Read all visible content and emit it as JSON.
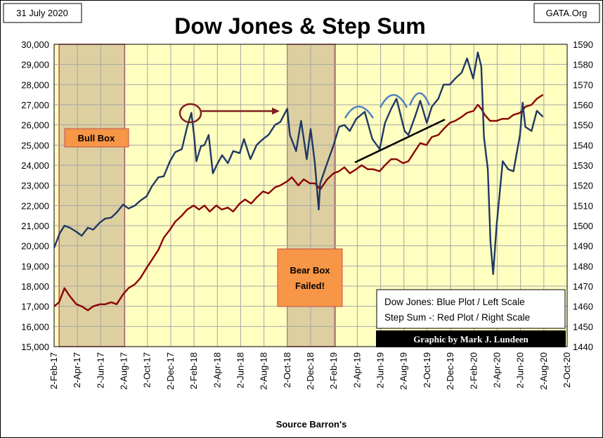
{
  "header": {
    "date_label": "31 July 2020",
    "source_label": "GATA.Org",
    "title": "Dow Jones & Step Sum"
  },
  "footer": {
    "source_note": "Source Barron's",
    "credit": "Graphic by Mark J. Lundeen"
  },
  "legend": {
    "line1": "Dow Jones: Blue Plot / Left Scale",
    "line2": "Step Sum -: Red Plot / Right Scale"
  },
  "annotations": {
    "bull_box": "Bull Box",
    "bear_box_line1": "Bear Box",
    "bear_box_line2": "Failed!"
  },
  "colors": {
    "plot_bg": "#ffffc0",
    "box_fill": "#ddcfa0",
    "box_border": "#c0504d",
    "label_fill": "#f79646",
    "dow_line": "#1f3864",
    "step_line": "#8b0000",
    "grid": "#a6a6a6"
  },
  "chart_data": {
    "type": "line",
    "title": "Dow Jones & Step Sum",
    "xlabel": "Source Barron's",
    "x_tick_labels": [
      "2-Feb-17",
      "2-Apr-17",
      "2-Jun-17",
      "2-Aug-17",
      "2-Oct-17",
      "2-Dec-17",
      "2-Feb-18",
      "2-Apr-18",
      "2-Jun-18",
      "2-Aug-18",
      "2-Oct-18",
      "2-Dec-18",
      "2-Feb-19",
      "2-Apr-19",
      "2-Jun-19",
      "2-Aug-19",
      "2-Oct-19",
      "2-Dec-19",
      "2-Feb-20",
      "2-Apr-20",
      "2-Jun-20",
      "2-Aug-20",
      "2-Oct-20"
    ],
    "x_range": [
      "2017-02-02",
      "2020-10-02"
    ],
    "y_left": {
      "label": "Dow Jones",
      "min": 15000,
      "max": 30000,
      "step": 1000,
      "tick_labels": [
        "15,000",
        "16,000",
        "17,000",
        "18,000",
        "19,000",
        "20,000",
        "21,000",
        "22,000",
        "23,000",
        "24,000",
        "25,000",
        "26,000",
        "27,000",
        "28,000",
        "29,000",
        "30,000"
      ]
    },
    "y_right": {
      "label": "Step Sum",
      "min": 1440,
      "max": 1590,
      "step": 10,
      "tick_labels": [
        "1440",
        "1450",
        "1460",
        "1470",
        "1480",
        "1490",
        "1500",
        "1510",
        "1520",
        "1530",
        "1540",
        "1550",
        "1560",
        "1570",
        "1580",
        "1590"
      ]
    },
    "boxes": [
      {
        "name": "Bull Box",
        "start": "2017-02-15",
        "end": "2017-08-05"
      },
      {
        "name": "Bear Box",
        "start": "2018-10-03",
        "end": "2019-02-05"
      }
    ],
    "series": [
      {
        "name": "Dow Jones",
        "axis": "left",
        "color": "#1f3864",
        "points": [
          [
            "2017-02-02",
            19900
          ],
          [
            "2017-02-16",
            20600
          ],
          [
            "2017-03-01",
            21000
          ],
          [
            "2017-03-15",
            20900
          ],
          [
            "2017-04-01",
            20700
          ],
          [
            "2017-04-15",
            20500
          ],
          [
            "2017-05-01",
            20900
          ],
          [
            "2017-05-15",
            20800
          ],
          [
            "2017-06-01",
            21150
          ],
          [
            "2017-06-15",
            21350
          ],
          [
            "2017-07-01",
            21400
          ],
          [
            "2017-07-15",
            21650
          ],
          [
            "2017-08-01",
            22050
          ],
          [
            "2017-08-15",
            21850
          ],
          [
            "2017-09-01",
            22000
          ],
          [
            "2017-09-15",
            22250
          ],
          [
            "2017-10-01",
            22450
          ],
          [
            "2017-10-15",
            22950
          ],
          [
            "2017-11-01",
            23400
          ],
          [
            "2017-11-15",
            23450
          ],
          [
            "2017-12-01",
            24200
          ],
          [
            "2017-12-15",
            24650
          ],
          [
            "2018-01-01",
            24800
          ],
          [
            "2018-01-15",
            25900
          ],
          [
            "2018-01-26",
            26600
          ],
          [
            "2018-02-02",
            25500
          ],
          [
            "2018-02-08",
            24200
          ],
          [
            "2018-02-20",
            24950
          ],
          [
            "2018-03-01",
            25000
          ],
          [
            "2018-03-12",
            25500
          ],
          [
            "2018-03-23",
            23600
          ],
          [
            "2018-04-02",
            24000
          ],
          [
            "2018-04-16",
            24500
          ],
          [
            "2018-05-01",
            24100
          ],
          [
            "2018-05-15",
            24700
          ],
          [
            "2018-06-01",
            24600
          ],
          [
            "2018-06-12",
            25300
          ],
          [
            "2018-06-29",
            24300
          ],
          [
            "2018-07-15",
            25000
          ],
          [
            "2018-08-01",
            25300
          ],
          [
            "2018-08-15",
            25500
          ],
          [
            "2018-09-01",
            26000
          ],
          [
            "2018-09-15",
            26150
          ],
          [
            "2018-10-03",
            26800
          ],
          [
            "2018-10-10",
            25500
          ],
          [
            "2018-10-26",
            24700
          ],
          [
            "2018-11-08",
            26200
          ],
          [
            "2018-11-23",
            24300
          ],
          [
            "2018-12-03",
            25800
          ],
          [
            "2018-12-14",
            24100
          ],
          [
            "2018-12-24",
            21800
          ],
          [
            "2018-12-28",
            23100
          ],
          [
            "2019-01-15",
            24100
          ],
          [
            "2019-02-01",
            25000
          ],
          [
            "2019-02-15",
            25900
          ],
          [
            "2019-03-01",
            26000
          ],
          [
            "2019-03-15",
            25700
          ],
          [
            "2019-04-01",
            26300
          ],
          [
            "2019-04-23",
            26650
          ],
          [
            "2019-05-13",
            25300
          ],
          [
            "2019-06-01",
            24800
          ],
          [
            "2019-06-15",
            26100
          ],
          [
            "2019-07-01",
            26800
          ],
          [
            "2019-07-15",
            27300
          ],
          [
            "2019-08-05",
            25700
          ],
          [
            "2019-08-15",
            25500
          ],
          [
            "2019-09-01",
            26400
          ],
          [
            "2019-09-15",
            27200
          ],
          [
            "2019-10-02",
            26100
          ],
          [
            "2019-10-15",
            26900
          ],
          [
            "2019-11-01",
            27300
          ],
          [
            "2019-11-15",
            28000
          ],
          [
            "2019-12-01",
            28000
          ],
          [
            "2019-12-15",
            28300
          ],
          [
            "2020-01-01",
            28600
          ],
          [
            "2020-01-15",
            29300
          ],
          [
            "2020-01-31",
            28300
          ],
          [
            "2020-02-12",
            29600
          ],
          [
            "2020-02-21",
            28900
          ],
          [
            "2020-02-28",
            25400
          ],
          [
            "2020-03-09",
            23800
          ],
          [
            "2020-03-16",
            20200
          ],
          [
            "2020-03-23",
            18600
          ],
          [
            "2020-04-01",
            21000
          ],
          [
            "2020-04-17",
            24200
          ],
          [
            "2020-05-01",
            23800
          ],
          [
            "2020-05-15",
            23700
          ],
          [
            "2020-06-01",
            25500
          ],
          [
            "2020-06-08",
            27100
          ],
          [
            "2020-06-15",
            25900
          ],
          [
            "2020-07-01",
            25700
          ],
          [
            "2020-07-15",
            26700
          ],
          [
            "2020-07-31",
            26400
          ]
        ]
      },
      {
        "name": "Step Sum",
        "axis": "right",
        "color": "#8b0000",
        "points": [
          [
            "2017-02-02",
            1460
          ],
          [
            "2017-02-15",
            1462
          ],
          [
            "2017-03-01",
            1469
          ],
          [
            "2017-03-15",
            1465
          ],
          [
            "2017-04-01",
            1461
          ],
          [
            "2017-04-15",
            1460
          ],
          [
            "2017-05-01",
            1458
          ],
          [
            "2017-05-15",
            1460
          ],
          [
            "2017-06-01",
            1461
          ],
          [
            "2017-06-15",
            1461
          ],
          [
            "2017-07-01",
            1462
          ],
          [
            "2017-07-15",
            1461
          ],
          [
            "2017-08-01",
            1466
          ],
          [
            "2017-08-15",
            1469
          ],
          [
            "2017-09-01",
            1471
          ],
          [
            "2017-09-15",
            1474
          ],
          [
            "2017-10-01",
            1479
          ],
          [
            "2017-10-15",
            1483
          ],
          [
            "2017-11-01",
            1488
          ],
          [
            "2017-11-15",
            1494
          ],
          [
            "2017-12-01",
            1498
          ],
          [
            "2017-12-15",
            1502
          ],
          [
            "2018-01-01",
            1505
          ],
          [
            "2018-01-15",
            1508
          ],
          [
            "2018-02-01",
            1510
          ],
          [
            "2018-02-15",
            1508
          ],
          [
            "2018-03-01",
            1510
          ],
          [
            "2018-03-15",
            1507
          ],
          [
            "2018-04-01",
            1510
          ],
          [
            "2018-04-15",
            1508
          ],
          [
            "2018-05-01",
            1509
          ],
          [
            "2018-05-15",
            1507
          ],
          [
            "2018-06-01",
            1511
          ],
          [
            "2018-06-15",
            1513
          ],
          [
            "2018-07-01",
            1511
          ],
          [
            "2018-07-15",
            1514
          ],
          [
            "2018-08-01",
            1517
          ],
          [
            "2018-08-15",
            1516
          ],
          [
            "2018-09-01",
            1519
          ],
          [
            "2018-09-15",
            1520
          ],
          [
            "2018-10-03",
            1522
          ],
          [
            "2018-10-15",
            1524
          ],
          [
            "2018-11-01",
            1520
          ],
          [
            "2018-11-15",
            1523
          ],
          [
            "2018-12-01",
            1521
          ],
          [
            "2018-12-15",
            1521
          ],
          [
            "2018-12-28",
            1518
          ],
          [
            "2019-01-15",
            1523
          ],
          [
            "2019-02-01",
            1526
          ],
          [
            "2019-02-15",
            1527
          ],
          [
            "2019-03-01",
            1529
          ],
          [
            "2019-03-15",
            1526
          ],
          [
            "2019-04-01",
            1528
          ],
          [
            "2019-04-15",
            1530
          ],
          [
            "2019-05-01",
            1528
          ],
          [
            "2019-05-15",
            1528
          ],
          [
            "2019-06-01",
            1527
          ],
          [
            "2019-06-15",
            1530
          ],
          [
            "2019-07-01",
            1533
          ],
          [
            "2019-07-15",
            1533
          ],
          [
            "2019-08-01",
            1531
          ],
          [
            "2019-08-15",
            1532
          ],
          [
            "2019-09-01",
            1537
          ],
          [
            "2019-09-15",
            1541
          ],
          [
            "2019-10-01",
            1540
          ],
          [
            "2019-10-15",
            1544
          ],
          [
            "2019-11-01",
            1545
          ],
          [
            "2019-11-15",
            1548
          ],
          [
            "2019-12-01",
            1551
          ],
          [
            "2019-12-15",
            1552
          ],
          [
            "2020-01-01",
            1554
          ],
          [
            "2020-01-15",
            1556
          ],
          [
            "2020-02-01",
            1557
          ],
          [
            "2020-02-12",
            1560
          ],
          [
            "2020-02-21",
            1558
          ],
          [
            "2020-03-01",
            1555
          ],
          [
            "2020-03-15",
            1552
          ],
          [
            "2020-04-01",
            1552
          ],
          [
            "2020-04-15",
            1553
          ],
          [
            "2020-05-01",
            1553
          ],
          [
            "2020-05-15",
            1555
          ],
          [
            "2020-06-01",
            1556
          ],
          [
            "2020-06-15",
            1559
          ],
          [
            "2020-07-01",
            1560
          ],
          [
            "2020-07-15",
            1563
          ],
          [
            "2020-07-31",
            1565
          ]
        ]
      }
    ]
  }
}
